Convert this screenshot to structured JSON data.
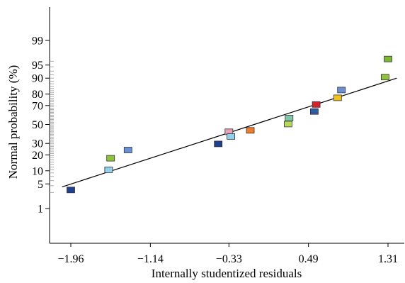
{
  "chart_data": {
    "type": "scatter",
    "title": "",
    "xlabel": "Internally studentized residuals",
    "ylabel": "Normal probability (%)",
    "x_ticks": [
      -1.96,
      -1.14,
      -0.33,
      0.49,
      1.31
    ],
    "x_tick_labels": [
      "−1.96",
      "−1.14",
      "−0.33",
      "0.49",
      "1.31"
    ],
    "y_scale": "normal-probability",
    "y_ticks": [
      1,
      5,
      10,
      20,
      30,
      50,
      70,
      80,
      90,
      95,
      99
    ],
    "y_tick_labels": [
      "1",
      "5",
      "10",
      "20",
      "30",
      "50",
      "70",
      "80",
      "90",
      "95",
      "99"
    ],
    "xlim": [
      -2.05,
      1.4
    ],
    "points": [
      {
        "x": -1.96,
        "y": 3.5,
        "color": "#1f3f8f"
      },
      {
        "x": -1.57,
        "y": 10.5,
        "color": "#8fd0ea"
      },
      {
        "x": -1.55,
        "y": 17.5,
        "color": "#8ec43a"
      },
      {
        "x": -1.37,
        "y": 24,
        "color": "#6b8fd4"
      },
      {
        "x": -0.44,
        "y": 29.5,
        "color": "#1f3f8f"
      },
      {
        "x": -0.33,
        "y": 42,
        "color": "#e8a0b6"
      },
      {
        "x": -0.31,
        "y": 37,
        "color": "#8fd0ea"
      },
      {
        "x": -0.11,
        "y": 43.5,
        "color": "#f07c2b"
      },
      {
        "x": 0.28,
        "y": 50.5,
        "color": "#b8d85a"
      },
      {
        "x": 0.29,
        "y": 57,
        "color": "#7fc7a5"
      },
      {
        "x": 0.55,
        "y": 64,
        "color": "#2f5aa8"
      },
      {
        "x": 0.57,
        "y": 71,
        "color": "#d8202a"
      },
      {
        "x": 0.79,
        "y": 77,
        "color": "#f2c21f"
      },
      {
        "x": 0.83,
        "y": 83,
        "color": "#6b8fd4"
      },
      {
        "x": 1.28,
        "y": 90.5,
        "color": "#8ec43a"
      },
      {
        "x": 1.31,
        "y": 96.5,
        "color": "#7cb82f"
      }
    ],
    "fit_line": {
      "x": [
        -2.05,
        1.4
      ],
      "y": [
        4.2,
        90.0
      ]
    },
    "grid": false,
    "legend": "none"
  }
}
